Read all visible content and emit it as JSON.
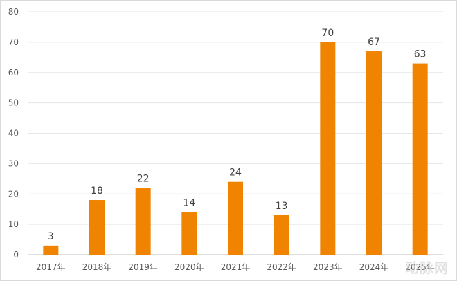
{
  "chart_data": {
    "type": "bar",
    "categories": [
      "2017年",
      "2018年",
      "2019年",
      "2020年",
      "2021年",
      "2022年",
      "2023年",
      "2024年",
      "2025年"
    ],
    "values": [
      3,
      18,
      22,
      14,
      24,
      13,
      70,
      67,
      63
    ],
    "ylim": [
      0,
      80
    ],
    "yticks": [
      0,
      10,
      20,
      30,
      40,
      50,
      60,
      70,
      80
    ],
    "grid": true,
    "bar_color": "#f08300",
    "title": "",
    "xlabel": "",
    "ylabel": ""
  },
  "watermark": "动脉网"
}
